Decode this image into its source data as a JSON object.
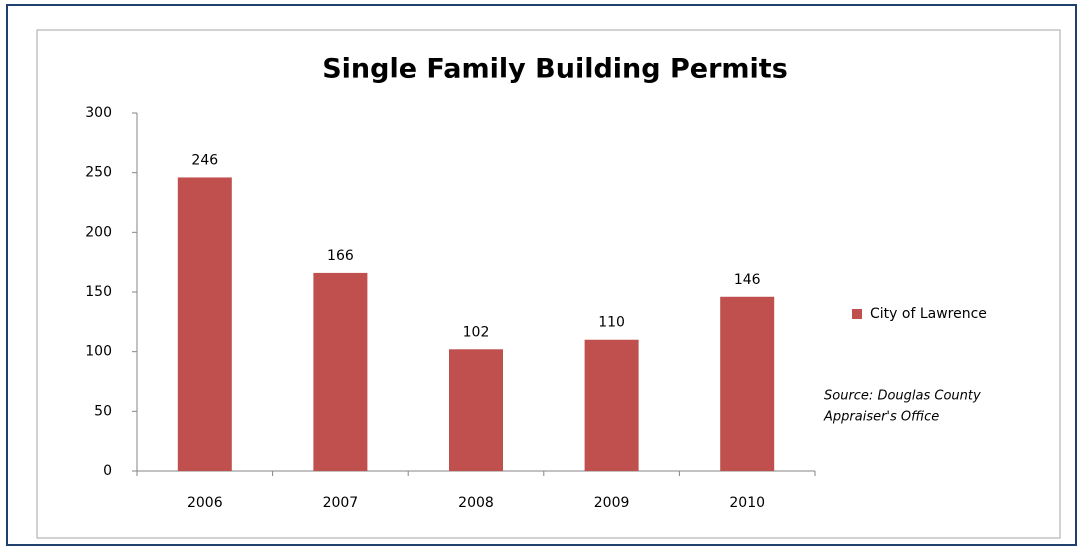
{
  "chart_data": {
    "type": "bar",
    "title": "Single Family Building Permits",
    "categories": [
      "2006",
      "2007",
      "2008",
      "2009",
      "2010"
    ],
    "series": [
      {
        "name": "City of Lawrence",
        "color": "#c0504d",
        "values": [
          246,
          166,
          102,
          110,
          146
        ]
      }
    ],
    "ylim": [
      0,
      300
    ],
    "yticks": [
      0,
      50,
      100,
      150,
      200,
      250,
      300
    ],
    "grid": false,
    "legend": "right",
    "source": [
      "Source:  Douglas County",
      "Appraiser's Office"
    ]
  }
}
